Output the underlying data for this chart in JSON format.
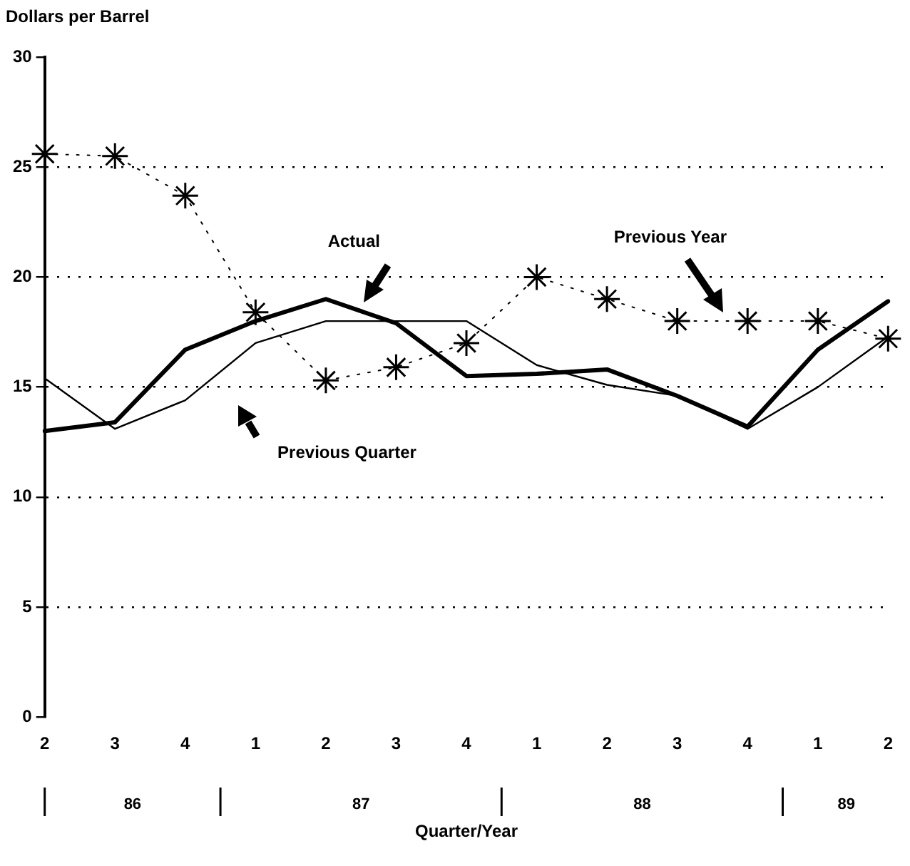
{
  "chart_data": {
    "type": "line",
    "ylabel": "Dollars per Barrel",
    "xlabel": "Quarter/Year",
    "categories": [
      "2",
      "3",
      "4",
      "1",
      "2",
      "3",
      "4",
      "1",
      "2",
      "3",
      "4",
      "1",
      "2"
    ],
    "annotations": [
      "86",
      "87",
      "88",
      "89"
    ],
    "series": [
      {
        "name": "Actual",
        "color": "#000000",
        "values": [
          13.0,
          13.4,
          16.7,
          18.0,
          19.0,
          17.9,
          15.5,
          15.6,
          15.8,
          14.6,
          13.2,
          16.7,
          18.9
        ],
        "marker": "none",
        "line_style": "solid"
      },
      {
        "name": "Previous Quarter",
        "color": "#000000",
        "values": [
          15.4,
          13.1,
          14.4,
          17.0,
          18.0,
          18.0,
          18.0,
          16.0,
          15.1,
          14.6,
          13.1,
          15.0,
          17.3
        ],
        "marker": "none",
        "line_style": "solid"
      },
      {
        "name": "Previous Year",
        "color": "#000000",
        "values": [
          25.6,
          25.5,
          23.7,
          18.4,
          15.3,
          15.9,
          17.0,
          20.0,
          19.0,
          18.0,
          18.0,
          18.0,
          17.2
        ],
        "marker": "cross",
        "line_style": "dotted"
      }
    ],
    "ylim": [
      0,
      30
    ],
    "yticks": [
      0,
      5,
      10,
      15,
      20,
      25,
      30
    ],
    "grid": "y",
    "legend": false
  }
}
